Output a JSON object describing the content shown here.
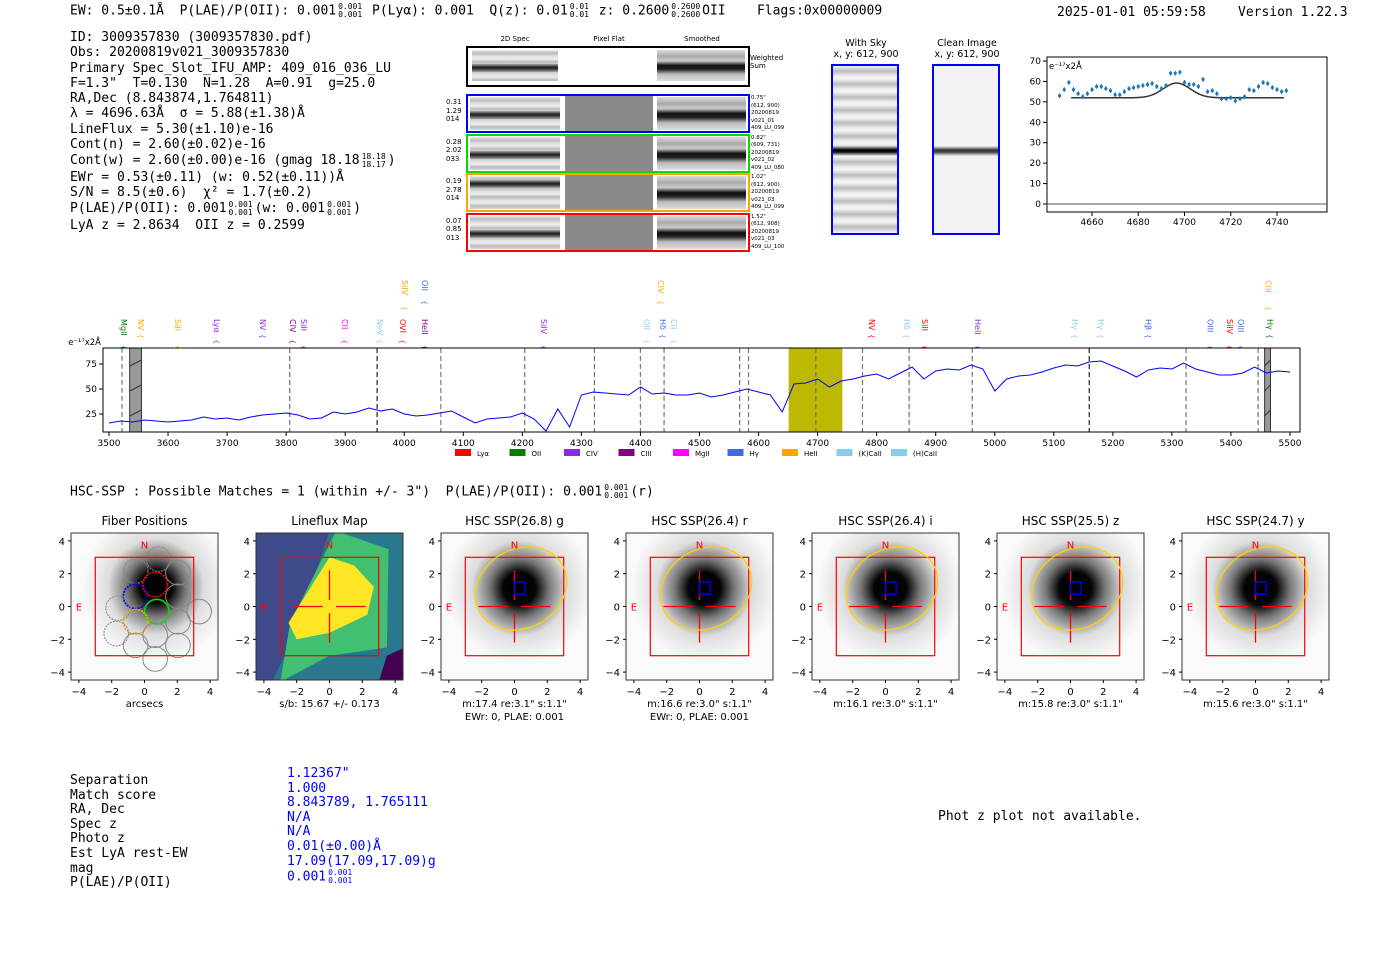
{
  "header": {
    "segments": [
      {
        "t": "EW: 0.5±0.1Å  P(LAE)/P(OII): 0.001"
      },
      {
        "hi": "0.001",
        "lo": "0.001"
      },
      {
        "t": " P(Lyα): 0.001  Q(z): 0.01"
      },
      {
        "hi": "0.01",
        "lo": "0.01"
      },
      {
        "t": " z: 0.2600"
      },
      {
        "hi": "0.2600",
        "lo": "0.2600"
      },
      {
        "t": "OII    Flags:0x00000009"
      }
    ],
    "timestamp": "2025-01-01 05:59:58",
    "version": "Version 1.22.3"
  },
  "info_lines": [
    [
      {
        "t": "ID: 3009357830 (3009357830.pdf)"
      }
    ],
    [
      {
        "t": "Obs: 20200819v021_3009357830"
      }
    ],
    [
      {
        "t": "Primary Spec_Slot_IFU_AMP: 409_016_036_LU"
      }
    ],
    [
      {
        "t": "F=1.3\"  T=0.130  N=1.28  A=0.91  g=25.0"
      }
    ],
    [
      {
        "t": "RA,Dec (8.843874,1.764811)"
      }
    ],
    [
      {
        "t": "λ = 4696.63Å  σ = 5.88(±1.38)Å"
      }
    ],
    [
      {
        "t": "LineFlux = 5.30(±1.10)e-16"
      }
    ],
    [
      {
        "t": "Cont(n) = 2.60(±0.02)e-16"
      }
    ],
    [
      {
        "t": "Cont(w) = 2.60(±0.00)e-16 (gmag 18.18"
      },
      {
        "hi": "18.18",
        "lo": "18.17"
      },
      {
        "t": ")"
      }
    ],
    [
      {
        "t": "EWr = 0.53(±0.11) (w: 0.52(±0.11))Å"
      }
    ],
    [
      {
        "t": "S/N = 8.5(±0.6)  χ² = 1.7(±0.2)"
      }
    ],
    [
      {
        "t": "P(LAE)/P(OII): 0.001"
      },
      {
        "hi": "0.001",
        "lo": "0.001"
      },
      {
        "t": "(w: 0.001"
      },
      {
        "hi": "0.001",
        "lo": "0.001"
      },
      {
        "t": ")"
      }
    ],
    [
      {
        "t": "LyA z = 2.8634  OII z = 0.2599"
      }
    ]
  ],
  "spec2d": {
    "headers": [
      "2D Spec",
      "Pixel Flat",
      "Smoothed"
    ],
    "weighted_sum_label": "Weighted\nSum",
    "rows": [
      {
        "color": "#0000ff",
        "left": "0.31\n1.29\n014",
        "right": "0.75\"\n(612, 900)\n20200819\nv021_01\n409_LU_099"
      },
      {
        "color": "#00dd00",
        "left": "0.28\n2.02\n033",
        "right": "0.82\"\n(609, 731)\n20200819\nv021_02\n409_LU_080"
      },
      {
        "color": "#ffa500",
        "left": "0.19\n2.78\n014",
        "right": "1.02\"\n(612, 900)\n20200819\nv021_03\n409_LU_099"
      },
      {
        "color": "#ff0000",
        "left": "0.07\n0.85\n013",
        "right": "1.52\"\n(612, 908)\n20200819\nv021_03\n409_LU_100"
      }
    ]
  },
  "cutouts_sky": [
    {
      "title": "With Sky",
      "subtitle": "x, y: 612, 900"
    },
    {
      "title": "Clean Image",
      "subtitle": "x, y: 612, 900"
    }
  ],
  "hsc_title_segments": [
    {
      "t": "HSC-SSP : Possible Matches = 1 (within +/- 3\")  P(LAE)/P(OII): 0.001"
    },
    {
      "hi": "0.001",
      "lo": "0.001"
    },
    {
      "t": "(r)"
    }
  ],
  "panels": [
    {
      "kind": "fibers",
      "title": "Fiber Positions",
      "captions": [
        "arcsecs"
      ]
    },
    {
      "kind": "lineflux",
      "title": "Lineflux Map",
      "captions": [
        "s/b: 15.67 +/- 0.173"
      ]
    },
    {
      "kind": "hsc",
      "title": "HSC SSP(26.8) g",
      "captions": [
        "m:17.4  re:3.1\"  s:1.1\"",
        "EWr: 0, PLAE: 0.001"
      ]
    },
    {
      "kind": "hsc",
      "title": "HSC SSP(26.4) r",
      "captions": [
        "m:16.6  re:3.0\"  s:1.1\"",
        "EWr: 0, PLAE: 0.001"
      ]
    },
    {
      "kind": "hsc",
      "title": "HSC SSP(26.4) i",
      "captions": [
        "m:16.1  re:3.0\"  s:1.1\""
      ]
    },
    {
      "kind": "hsc",
      "title": "HSC SSP(25.5) z",
      "captions": [
        "m:15.8  re:3.0\"  s:1.1\""
      ]
    },
    {
      "kind": "hsc",
      "title": "HSC SSP(24.7) y",
      "captions": [
        "m:15.6  re:3.0\"  s:1.1\""
      ]
    }
  ],
  "panel_common": {
    "north": "N",
    "east": "E",
    "ticks": [
      "−4",
      "−2",
      "0",
      "2",
      "4"
    ]
  },
  "match_table": {
    "labels": [
      "Separation",
      "Match score",
      "RA, Dec",
      "Spec z",
      "Photo z",
      "Est LyA rest-EW",
      "mag",
      "P(LAE)/P(OII)"
    ],
    "values": [
      "1.12367\"",
      "1.000",
      "8.843789, 1.765111",
      "N/A",
      "N/A",
      "0.01(±0.00)Å",
      "17.09(17.09,17.09)g",
      "0.001"
    ],
    "plae_frac": {
      "hi": "0.001",
      "lo": "0.001"
    }
  },
  "phot_z_message": "Phot z plot not available.",
  "chart_data": [
    {
      "type": "scatter",
      "title": "",
      "unit_label": "e⁻¹⁷x2Å",
      "xlim": [
        4642,
        4750
      ],
      "ylim": [
        -3,
        72
      ],
      "xticks": [
        4660,
        4680,
        4700,
        4720,
        4740
      ],
      "yticks": [
        0,
        10,
        20,
        30,
        40,
        50,
        60,
        70
      ],
      "x": [
        4646,
        4648,
        4650,
        4652,
        4654,
        4656,
        4658,
        4660,
        4662,
        4664,
        4666,
        4668,
        4670,
        4672,
        4674,
        4676,
        4678,
        4680,
        4682,
        4684,
        4686,
        4688,
        4690,
        4692,
        4694,
        4696,
        4698,
        4700,
        4702,
        4704,
        4706,
        4708,
        4710,
        4712,
        4714,
        4716,
        4718,
        4720,
        4722,
        4724,
        4726,
        4728,
        4730,
        4732,
        4734,
        4736,
        4738,
        4740,
        4742,
        4744
      ],
      "y": [
        53,
        56,
        59.5,
        56,
        54,
        52.5,
        54,
        56,
        57.5,
        57.5,
        56.5,
        55.5,
        53.5,
        53.5,
        55,
        56.5,
        57,
        57.5,
        58,
        58.5,
        59,
        57.5,
        56.5,
        58,
        64,
        64,
        64.5,
        59.5,
        58.5,
        58.5,
        57.5,
        61,
        55,
        55.5,
        54,
        51.5,
        51.5,
        52,
        50.5,
        51.5,
        52.5,
        56,
        55.5,
        57.5,
        59.5,
        59,
        57,
        56,
        55,
        55.5
      ],
      "yerr": 1.2,
      "fit": {
        "continuum": 52,
        "amplitude": 7.2,
        "center": 4696.63,
        "sigma": 5.88,
        "range": [
          4651,
          4743
        ]
      }
    },
    {
      "type": "line",
      "title": "",
      "unit_label": "e⁻¹⁷x2Å",
      "xlim": [
        3490,
        5515
      ],
      "ylim": [
        7,
        91
      ],
      "xticks": [
        3500,
        3600,
        3700,
        3800,
        3900,
        4000,
        4100,
        4200,
        4300,
        4400,
        4500,
        4600,
        4700,
        4800,
        4900,
        5000,
        5100,
        5200,
        5300,
        5400,
        5500
      ],
      "yticks": [
        25,
        50,
        75
      ],
      "x_start": 3500,
      "x_step": 20,
      "flux": [
        16,
        18,
        17,
        19,
        18,
        17,
        18,
        19,
        22,
        20,
        21,
        19,
        22,
        24,
        25,
        26,
        24,
        20,
        21,
        27,
        25,
        27,
        31,
        28,
        30,
        25,
        23,
        24,
        26,
        28,
        22,
        16,
        20,
        21,
        22,
        26,
        20,
        8,
        30,
        12,
        44,
        47,
        46,
        45,
        44,
        52,
        45,
        46,
        44,
        44,
        46,
        42,
        44,
        47,
        50,
        47,
        44,
        27,
        55,
        56,
        60,
        52,
        58,
        60,
        63,
        65,
        60,
        66,
        72,
        60,
        68,
        70,
        69,
        74,
        70,
        48,
        60,
        63,
        64,
        67,
        71,
        74,
        73,
        77,
        78,
        73,
        68,
        62,
        69,
        71,
        70,
        76,
        70,
        67,
        64,
        64,
        66,
        72,
        66,
        68,
        67
      ],
      "highlight_band": [
        4651,
        4742
      ],
      "masked_bands": [
        [
          3535,
          3555
        ],
        [
          5457,
          5467
        ]
      ],
      "dashed_lines": [
        3522,
        3806,
        3954,
        4062,
        4204,
        4322,
        4400,
        4440,
        4568,
        4583,
        4697,
        4776,
        4855,
        4962,
        5160,
        5324,
        5446
      ],
      "line_labels": [
        {
          "name": "MgII",
          "w": 3525,
          "color": "#008000",
          "row": 0
        },
        {
          "name": "NV",
          "w": 3554,
          "color": "#ffa500",
          "row": 0
        },
        {
          "name": "SiII",
          "w": 3617,
          "color": "#ffa500",
          "row": 0
        },
        {
          "name": "Lyα",
          "w": 3683,
          "color": "#8a2be2",
          "row": 0
        },
        {
          "name": "NV",
          "w": 3761,
          "color": "#8a2be2",
          "row": 0
        },
        {
          "name": "CIV",
          "w": 3812,
          "color": "#800080",
          "row": 0
        },
        {
          "name": "SiII",
          "w": 3830,
          "color": "#8a2be2",
          "row": 0
        },
        {
          "name": "CII",
          "w": 3900,
          "color": "#ff00ff",
          "row": 0
        },
        {
          "name": "NeV",
          "w": 3959,
          "color": "#87ceeb",
          "row": 0
        },
        {
          "name": "OVI",
          "w": 3998,
          "color": "#ff0000",
          "row": 0
        },
        {
          "name": "HeII",
          "w": 4035,
          "color": "#800080",
          "row": 0
        },
        {
          "name": "SiIV",
          "w": 4237,
          "color": "#8a2be2",
          "row": 0
        },
        {
          "name": "OII",
          "w": 4411,
          "color": "#87ceeb",
          "row": 0
        },
        {
          "name": "Hδ",
          "w": 4438,
          "color": "#4169e1",
          "row": 0
        },
        {
          "name": "CII",
          "w": 4452,
          "color": "#87ceeb",
          "row": 0
        },
        {
          "name": "NV",
          "w": 4792,
          "color": "#ff0000",
          "row": 0
        },
        {
          "name": "Hδ",
          "w": 4851,
          "color": "#87ceeb",
          "row": 0
        },
        {
          "name": "SiII",
          "w": 4882,
          "color": "#ff0000",
          "row": 0
        },
        {
          "name": "HeII",
          "w": 4972,
          "color": "#8a2be2",
          "row": 0
        },
        {
          "name": "Hγ",
          "w": 5136,
          "color": "#87ceeb",
          "row": 0
        },
        {
          "name": "Hγ",
          "w": 5180,
          "color": "#87ceeb",
          "row": 0
        },
        {
          "name": "Hβ",
          "w": 5260,
          "color": "#4169e1",
          "row": 0
        },
        {
          "name": "OIII",
          "w": 5365,
          "color": "#4169e1",
          "row": 0
        },
        {
          "name": "SiIV",
          "w": 5398,
          "color": "#ff0000",
          "row": 0
        },
        {
          "name": "OIII",
          "w": 5417,
          "color": "#4169e1",
          "row": 0
        },
        {
          "name": "Hγ",
          "w": 5466,
          "color": "#008000",
          "row": 0
        },
        {
          "name": "SiIV",
          "w": 4001,
          "color": "#ffa500",
          "row": 1
        },
        {
          "name": "OII",
          "w": 4035,
          "color": "#4169e1",
          "row": 1
        },
        {
          "name": "CIV",
          "w": 4435,
          "color": "#ffa500",
          "row": 1
        },
        {
          "name": "CIII",
          "w": 5464,
          "color": "#ffa500",
          "row": 1
        }
      ],
      "legend": [
        {
          "name": "Lyα",
          "color": "#ff0000"
        },
        {
          "name": "OII",
          "color": "#008000"
        },
        {
          "name": "CIV",
          "color": "#8a2be2"
        },
        {
          "name": "CIII",
          "color": "#800080"
        },
        {
          "name": "MgII",
          "color": "#ff00ff"
        },
        {
          "name": "Hγ",
          "color": "#4169e1"
        },
        {
          "name": "HeII",
          "color": "#ffa500"
        },
        {
          "name": "(K)CaII",
          "color": "#87ceeb"
        },
        {
          "name": "(H)CaII",
          "color": "#87ceeb"
        }
      ],
      "legend_position": "bottom-center"
    }
  ]
}
